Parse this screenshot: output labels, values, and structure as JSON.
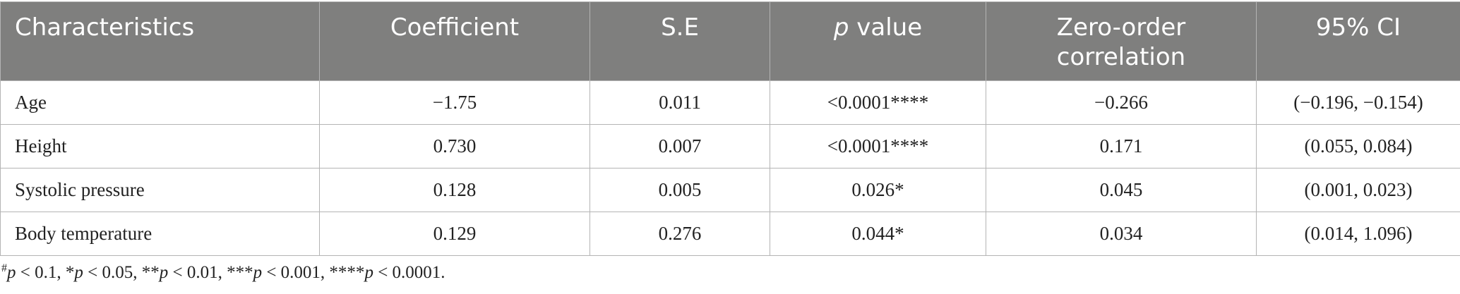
{
  "table": {
    "headers": {
      "characteristics": "Characteristics",
      "coefficient": "Coefficient",
      "se": "S.E",
      "p_italic": "p",
      "p_rest": " value",
      "zero_order_line1": "Zero-order",
      "zero_order_line2": "correlation",
      "ci": "95% CI"
    },
    "rows": [
      {
        "characteristic": "Age",
        "coefficient": "−1.75",
        "se": "0.011",
        "p_value": "<0.0001****",
        "zero_order": "−0.266",
        "ci": "(−0.196, −0.154)"
      },
      {
        "characteristic": "Height",
        "coefficient": "0.730",
        "se": "0.007",
        "p_value": "<0.0001****",
        "zero_order": "0.171",
        "ci": "(0.055, 0.084)"
      },
      {
        "characteristic": "Systolic pressure",
        "coefficient": "0.128",
        "se": "0.005",
        "p_value": "0.026*",
        "zero_order": "0.045",
        "ci": "(0.001, 0.023)"
      },
      {
        "characteristic": "Body temperature",
        "coefficient": "0.129",
        "se": "0.276",
        "p_value": "0.044*",
        "zero_order": "0.034",
        "ci": "(0.014, 1.096)"
      }
    ]
  },
  "footnote": {
    "s1": "#",
    "p1": "p",
    "t1": " < 0.1, *",
    "p2": "p",
    "t2": " < 0.05, **",
    "p3": "p",
    "t3": " < 0.01, ***",
    "p4": "p",
    "t4": " < 0.001, ****",
    "p5": "p",
    "t5": " < 0.0001."
  }
}
